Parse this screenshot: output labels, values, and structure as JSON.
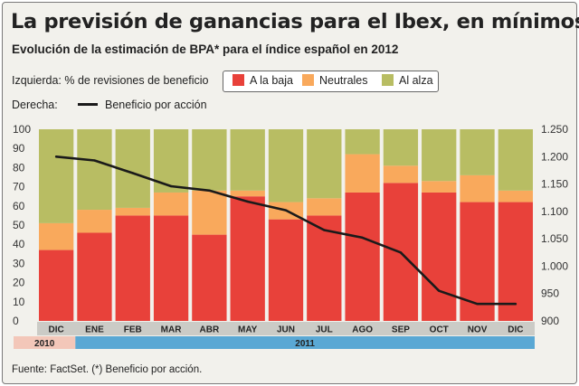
{
  "title": "La previsión de ganancias para el Ibex, en mínimos",
  "subtitle": "Evolución de la estimación de BPA* para el índice español en 2012",
  "left_axis_label": "Izquierda: % de revisiones de beneficio",
  "right_axis_label": "Derecha:",
  "line_legend": "Beneficio por acción",
  "source": "Fuente: FactSet. (*) Beneficio por acción.",
  "colors": {
    "baja": "#e8413a",
    "neutrales": "#f9a95c",
    "alza": "#b8bd63",
    "line": "#1a1a1a",
    "month_band": "#cbcbc6",
    "year_2010": "#f3c7b9",
    "year_2011": "#5aa8d4"
  },
  "chart_data": {
    "type": "bar",
    "stacked": true,
    "categories": [
      "DIC",
      "ENE",
      "FEB",
      "MAR",
      "ABR",
      "MAY",
      "JUN",
      "JUL",
      "AGO",
      "SEP",
      "OCT",
      "NOV",
      "DIC"
    ],
    "years": [
      {
        "label": "2010",
        "span": 1
      },
      {
        "label": "2011",
        "span": 12
      }
    ],
    "series": [
      {
        "name": "A la baja",
        "values": [
          37,
          46,
          55,
          55,
          45,
          65,
          53,
          55,
          67,
          72,
          67,
          62,
          62
        ]
      },
      {
        "name": "Neutrales",
        "values": [
          14,
          12,
          4,
          12,
          23,
          3,
          9,
          9,
          20,
          9,
          6,
          14,
          6
        ]
      },
      {
        "name": "Al alza",
        "values": [
          49,
          42,
          41,
          33,
          32,
          32,
          38,
          36,
          13,
          19,
          27,
          24,
          32
        ]
      }
    ],
    "line_series": {
      "name": "Beneficio por acción",
      "axis": "right",
      "values": [
        1200,
        1193,
        1170,
        1146,
        1138,
        1118,
        1102,
        1066,
        1052,
        1025,
        955,
        931,
        931
      ]
    },
    "ylim_left": [
      0,
      100
    ],
    "yticks_left": [
      "0",
      "10",
      "20",
      "30",
      "40",
      "50",
      "60",
      "70",
      "80",
      "90",
      "100"
    ],
    "ylim_right": [
      900,
      1250
    ],
    "yticks_right": [
      "900",
      "950",
      "1.000",
      "1.050",
      "1.100",
      "1.150",
      "1.200",
      "1.250"
    ],
    "grid": false
  }
}
